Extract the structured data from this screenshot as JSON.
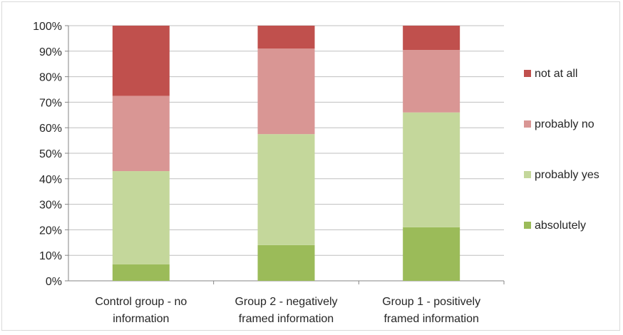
{
  "chart_data": {
    "type": "bar",
    "stacked": true,
    "categories": [
      [
        "Control group - no",
        "information"
      ],
      [
        "Group 2 - negatively",
        "framed information"
      ],
      [
        "Group 1 - positively",
        "framed information"
      ]
    ],
    "series": [
      {
        "name": "absolutely",
        "color": "#9bbb59",
        "values": [
          6.5,
          14,
          21
        ]
      },
      {
        "name": "probably yes",
        "color": "#c4d79b",
        "values": [
          36.5,
          43.5,
          45
        ]
      },
      {
        "name": "probably no",
        "color": "#d99694",
        "values": [
          29.5,
          33.5,
          24.5
        ]
      },
      {
        "name": "not at all",
        "color": "#c0504d",
        "values": [
          27.5,
          9,
          9.5
        ]
      }
    ],
    "legend_order": [
      "not at all",
      "probably no",
      "probably yes",
      "absolutely"
    ],
    "y_ticks": [
      "0%",
      "10%",
      "20%",
      "30%",
      "40%",
      "50%",
      "60%",
      "70%",
      "80%",
      "90%",
      "100%"
    ],
    "ylim": [
      0,
      100
    ],
    "grid": true,
    "legend_position": "right",
    "title": "",
    "xlabel": "",
    "ylabel": ""
  }
}
